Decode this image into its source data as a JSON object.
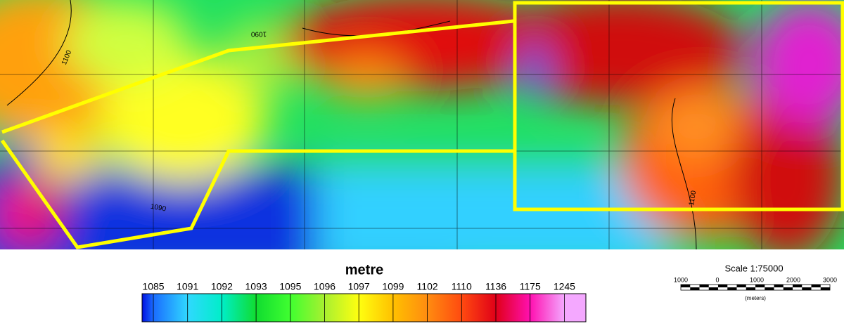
{
  "map": {
    "contour_labels": [
      "1100",
      "1090",
      "1090",
      "1100"
    ],
    "legend": {
      "title": "metre",
      "ticks": [
        1085,
        1091,
        1092,
        1093,
        1095,
        1096,
        1097,
        1099,
        1102,
        1110,
        1136,
        1175,
        1245
      ],
      "colors": [
        "#0010e0",
        "#1a6cff",
        "#30d8ff",
        "#00eec8",
        "#10dc30",
        "#40ff30",
        "#a8f030",
        "#ffff10",
        "#ffc000",
        "#ff8c10",
        "#ff4a10",
        "#e00018",
        "#ff10b0",
        "#f4a8ff"
      ]
    },
    "scale": {
      "title": "Scale 1:75000",
      "labels": [
        "1000",
        "0",
        "1000",
        "2000",
        "3000"
      ],
      "unit": "(meters)"
    }
  }
}
